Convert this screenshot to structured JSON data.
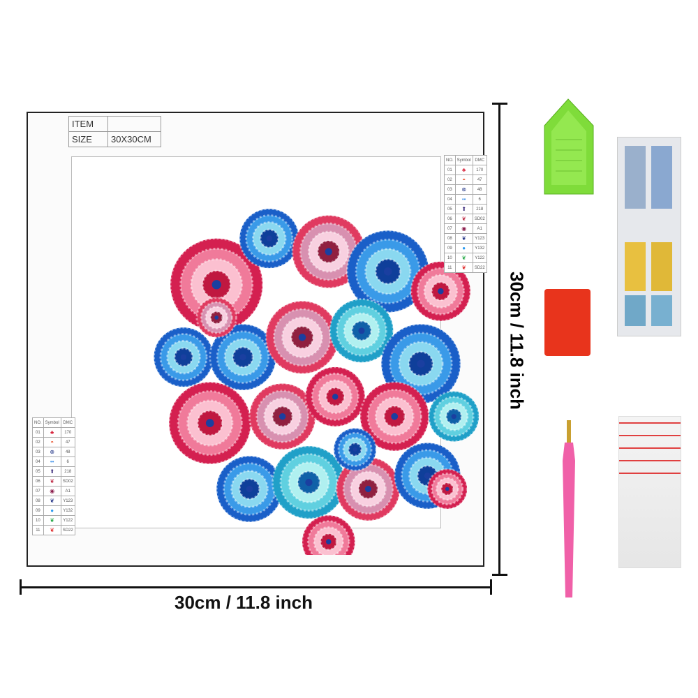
{
  "item_table": {
    "item_label": "ITEM",
    "item_value": "",
    "size_label": "SIZE",
    "size_value": "30X30CM"
  },
  "legend": {
    "headers": [
      "NO.",
      "Symbol",
      "DMC"
    ],
    "rows": [
      {
        "no": "01",
        "symbol": "♣",
        "color": "#d8213a",
        "dmc": "170"
      },
      {
        "no": "02",
        "symbol": "◓",
        "color": "#e8502a",
        "dmc": "47"
      },
      {
        "no": "03",
        "symbol": "⊗",
        "color": "#2c3e8c",
        "dmc": "48"
      },
      {
        "no": "04",
        "symbol": "••",
        "color": "#3a8ee8",
        "dmc": "6"
      },
      {
        "no": "05",
        "symbol": "⬆",
        "color": "#3b2a7a",
        "dmc": "218"
      },
      {
        "no": "06",
        "symbol": "❦",
        "color": "#c0304a",
        "dmc": "SD02"
      },
      {
        "no": "07",
        "symbol": "◉",
        "color": "#8a1a4a",
        "dmc": "A1"
      },
      {
        "no": "08",
        "symbol": "❦",
        "color": "#2a3a8a",
        "dmc": "Y123"
      },
      {
        "no": "09",
        "symbol": "●",
        "color": "#2a9af0",
        "dmc": "Y132"
      },
      {
        "no": "10",
        "symbol": "❦",
        "color": "#2aaa4a",
        "dmc": "Y122"
      },
      {
        "no": "11",
        "symbol": "❦",
        "color": "#e03030",
        "dmc": "SD22"
      }
    ]
  },
  "dimensions": {
    "width_label": "30cm / 11.8 inch",
    "height_label": "30cm / 11.8 inch"
  },
  "colors": {
    "pink": "#e0305a",
    "blue": "#1f6fd0",
    "cyan": "#40c0d8",
    "tray": "#7fdc3a",
    "clay": "#e8341c",
    "pen": "#f060a8"
  }
}
